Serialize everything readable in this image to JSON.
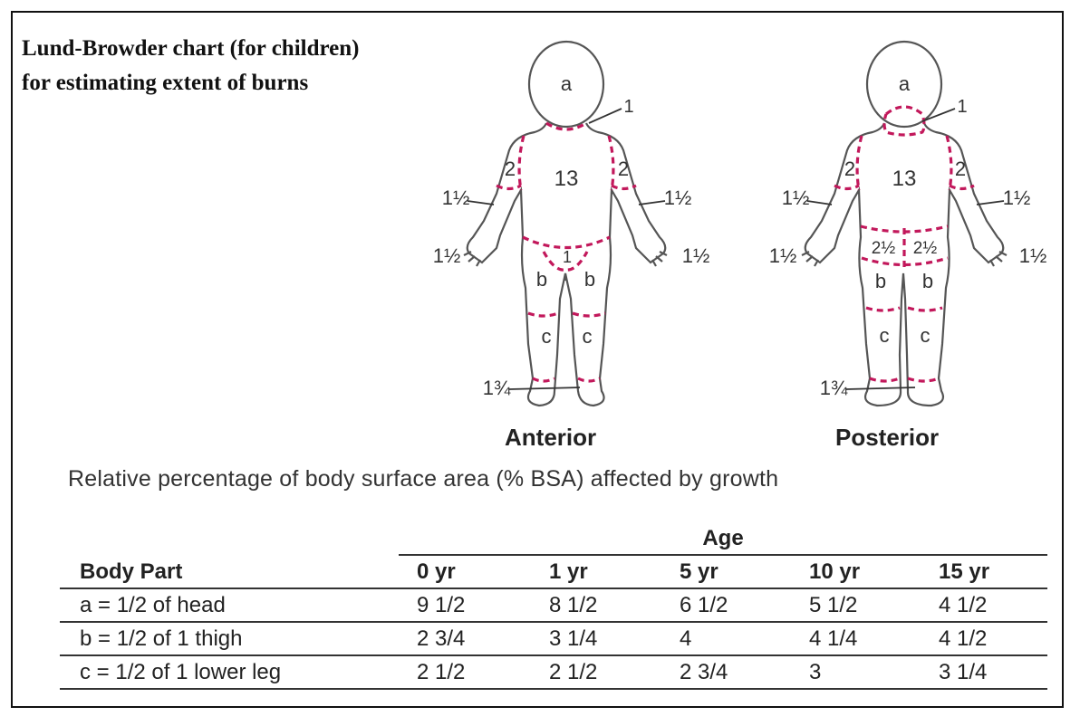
{
  "title": {
    "line1": "Lund-Browder chart (for children)",
    "line2": "for estimating extent of burns"
  },
  "figures": {
    "anterior": {
      "caption": "Anterior",
      "labels": {
        "head": "a",
        "neck": "1",
        "trunk": "13",
        "upper_arm_left": "2",
        "upper_arm_right": "2",
        "forearm_left": "1½",
        "forearm_right": "1½",
        "hand_left": "1½",
        "hand_right": "1½",
        "genitals": "1",
        "thigh_left": "b",
        "thigh_right": "b",
        "leg_left": "c",
        "leg_right": "c",
        "foot": "1¾"
      }
    },
    "posterior": {
      "caption": "Posterior",
      "labels": {
        "head": "a",
        "neck": "1",
        "trunk": "13",
        "upper_arm_left": "2",
        "upper_arm_right": "2",
        "forearm_left": "1½",
        "forearm_right": "1½",
        "hand_left": "1½",
        "hand_right": "1½",
        "buttock_left": "2½",
        "buttock_right": "2½",
        "thigh_left": "b",
        "thigh_right": "b",
        "leg_left": "c",
        "leg_right": "c",
        "foot": "1¾"
      }
    },
    "colors": {
      "outline": "#555555",
      "boundary": "#c2185b"
    }
  },
  "subtitle": "Relative percentage of body surface area (% BSA) affected by growth",
  "table": {
    "group_header": "Age",
    "columns": [
      "Body Part",
      "0 yr",
      "1 yr",
      "5 yr",
      "10 yr",
      "15 yr"
    ],
    "rows": [
      [
        "a = 1/2 of head",
        "9 1/2",
        "8 1/2",
        "6 1/2",
        "5 1/2",
        "4 1/2"
      ],
      [
        "b = 1/2 of 1 thigh",
        "2 3/4",
        "3 1/4",
        "4",
        "4 1/4",
        "4 1/2"
      ],
      [
        "c = 1/2 of 1 lower leg",
        "2 1/2",
        "2 1/2",
        "2 3/4",
        "3",
        "3 1/4"
      ]
    ]
  }
}
